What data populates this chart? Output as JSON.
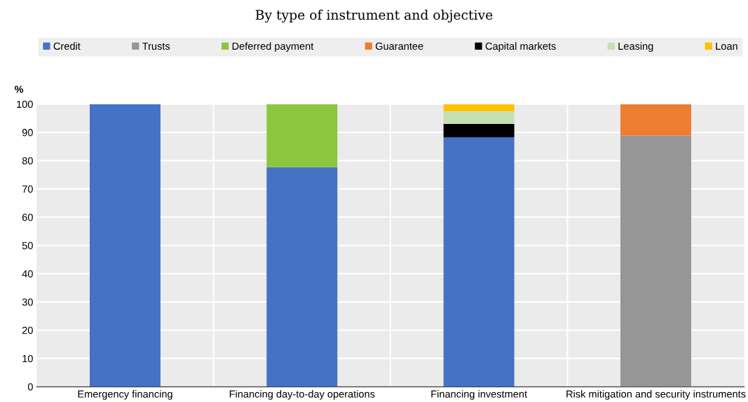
{
  "chart_data": {
    "type": "bar",
    "stacked": true,
    "subtitle": "By type of instrument and objective",
    "ylabel": "%",
    "categories": [
      "Emergency financing",
      "Financing day-to-day operations",
      "Financing investment",
      "Risk mitigation and security instruments"
    ],
    "series": [
      {
        "name": "Credit",
        "color": "#4472c4",
        "values": [
          100,
          77.7,
          88.3,
          0
        ]
      },
      {
        "name": "Trusts",
        "color": "#969696",
        "values": [
          0,
          0,
          0,
          88.9
        ]
      },
      {
        "name": "Deferred payment",
        "color": "#8cc63f",
        "values": [
          0,
          22.3,
          0,
          0
        ]
      },
      {
        "name": "Guarantee",
        "color": "#ed7d31",
        "values": [
          0,
          0,
          0,
          11.1
        ]
      },
      {
        "name": "Capital markets",
        "color": "#000000",
        "values": [
          0,
          0,
          4.7,
          0
        ]
      },
      {
        "name": "Leasing",
        "color": "#c5e0b4",
        "values": [
          0,
          0,
          4.5,
          0
        ]
      },
      {
        "name": "Loan",
        "color": "#ffc000",
        "values": [
          0,
          0,
          2.5,
          0
        ]
      }
    ],
    "ylim": [
      0,
      100
    ],
    "yticks": [
      0,
      10,
      20,
      30,
      40,
      50,
      60,
      70,
      80,
      90,
      100
    ],
    "grid": true,
    "legend": "top"
  }
}
